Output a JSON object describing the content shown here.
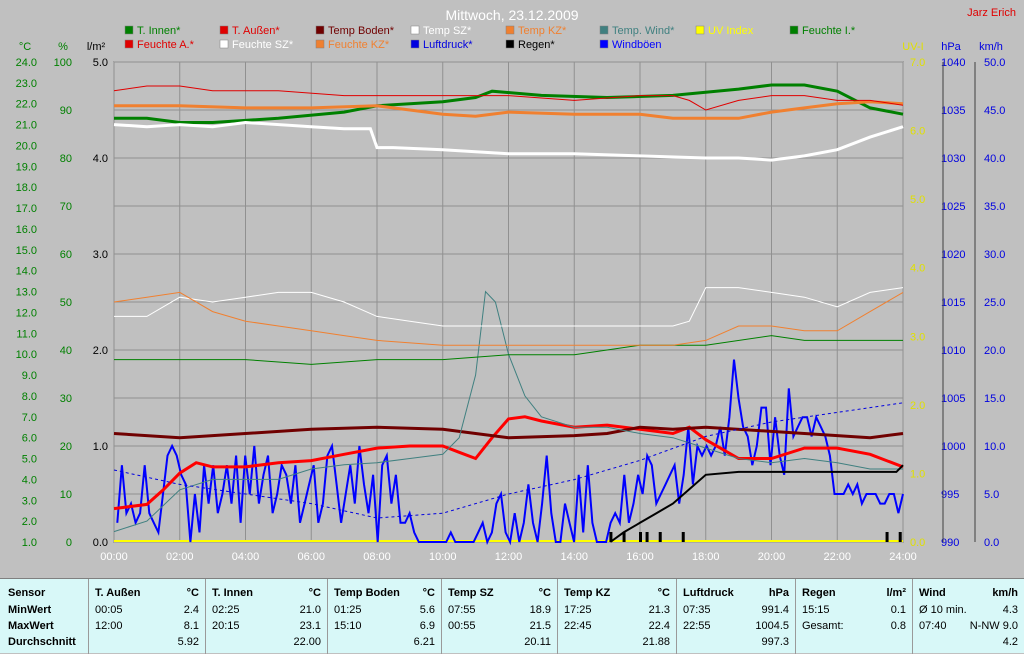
{
  "title": "Mittwoch, 23.12.2009",
  "author": "Jarz Erich",
  "colors": {
    "background": "#c0c0c0",
    "t_innen": "#008000",
    "t_aussen": "#e00000",
    "temp_boden": "#700000",
    "temp_sz": "#ffffff",
    "temp_kz": "#f08030",
    "temp_wind": "#408080",
    "uv": "#e0e000",
    "feuchte_i": "#008000",
    "feuchte_a": "#e00000",
    "feuchte_sz": "#ffffff",
    "feuchte_kz": "#f08030",
    "luftdruck": "#0000e0",
    "regen": "#000000",
    "windboeen": "#0000ff"
  },
  "legend": [
    {
      "label": "T. Innen*",
      "color": "#008000"
    },
    {
      "label": "T. Außen*",
      "color": "#e00000"
    },
    {
      "label": "Temp Boden*",
      "color": "#700000"
    },
    {
      "label": "Temp SZ*",
      "color": "#ffffff"
    },
    {
      "label": "Temp KZ*",
      "color": "#f08030"
    },
    {
      "label": "Temp. Wind*",
      "color": "#408080"
    },
    {
      "label": "UV Index",
      "color": "#ffff00"
    },
    {
      "label": "Feuchte I.*",
      "color": "#008000"
    },
    {
      "label": "Feuchte A.*",
      "color": "#e00000"
    },
    {
      "label": "Feuchte SZ*",
      "color": "#ffffff"
    },
    {
      "label": "Feuchte KZ*",
      "color": "#f08030"
    },
    {
      "label": "Luftdruck*",
      "color": "#0000e0"
    },
    {
      "label": "Regen*",
      "color": "#000000"
    },
    {
      "label": "Windböen",
      "color": "#0000ff"
    }
  ],
  "chart_data": {
    "type": "line",
    "x_ticks": [
      "00:00",
      "02:00",
      "04:00",
      "06:00",
      "08:00",
      "10:00",
      "12:00",
      "14:00",
      "16:00",
      "18:00",
      "20:00",
      "22:00",
      "24:00"
    ],
    "x_range_hours": [
      0,
      24
    ],
    "axes": {
      "temp_c": {
        "unit": "°C",
        "range": [
          1.0,
          24.0
        ],
        "ticks": [
          "1.0",
          "2.0",
          "3.0",
          "4.0",
          "5.0",
          "6.0",
          "7.0",
          "8.0",
          "9.0",
          "10.0",
          "11.0",
          "12.0",
          "13.0",
          "14.0",
          "15.0",
          "16.0",
          "17.0",
          "18.0",
          "19.0",
          "20.0",
          "21.0",
          "22.0",
          "23.0",
          "24.0"
        ]
      },
      "humidity_pct": {
        "unit": "%",
        "range": [
          0,
          100
        ],
        "ticks": [
          "0",
          "10",
          "20",
          "30",
          "40",
          "50",
          "60",
          "70",
          "80",
          "90",
          "100"
        ]
      },
      "rain_lm2": {
        "unit": "l/m²",
        "range": [
          0,
          5
        ],
        "ticks": [
          "0.0",
          "1.0",
          "2.0",
          "3.0",
          "4.0",
          "5.0"
        ]
      },
      "uv": {
        "unit": "UV-I",
        "range": [
          0,
          7
        ],
        "ticks": [
          "0.0",
          "1.0",
          "2.0",
          "3.0",
          "4.0",
          "5.0",
          "6.0",
          "7.0"
        ]
      },
      "pressure_hpa": {
        "unit": "hPa",
        "range": [
          990,
          1040
        ],
        "ticks": [
          "990",
          "995",
          "1000",
          "1005",
          "1010",
          "1015",
          "1020",
          "1025",
          "1030",
          "1035",
          "1040"
        ]
      },
      "wind_kmh": {
        "unit": "km/h",
        "range": [
          0,
          50
        ],
        "ticks": [
          "0.0",
          "5.0",
          "10.0",
          "15.0",
          "20.0",
          "25.0",
          "30.0",
          "35.0",
          "40.0",
          "45.0",
          "50.0"
        ]
      }
    },
    "series": [
      {
        "name": "T. Innen*",
        "axis": "temp_c",
        "color": "#008000",
        "width": 3,
        "x": [
          0,
          1,
          2,
          3,
          5,
          7,
          8,
          10,
          11,
          11.5,
          13,
          15,
          17,
          19,
          20,
          21,
          22,
          23,
          24
        ],
        "y": [
          21.3,
          21.3,
          21.1,
          21.1,
          21.3,
          21.6,
          21.9,
          22.1,
          22.3,
          22.6,
          22.4,
          22.3,
          22.4,
          22.7,
          22.9,
          22.9,
          22.6,
          21.8,
          21.5
        ]
      },
      {
        "name": "T. Außen*",
        "axis": "temp_c",
        "color": "#ff0000",
        "width": 3,
        "x": [
          0,
          1,
          1.5,
          2,
          2.5,
          3,
          4,
          5,
          6,
          7,
          8,
          9,
          10,
          10.5,
          11,
          11.5,
          12,
          12.5,
          13,
          14,
          15,
          16,
          17,
          17.5,
          18,
          19,
          20,
          21,
          22,
          23,
          24
        ],
        "y": [
          2.6,
          2.8,
          3.5,
          4.3,
          4.8,
          4.6,
          4.6,
          4.8,
          4.9,
          5.2,
          5.5,
          5.6,
          5.6,
          5.3,
          5.0,
          6.0,
          6.9,
          7.0,
          6.8,
          6.5,
          6.6,
          6.4,
          6.2,
          6.5,
          5.9,
          5.0,
          5.0,
          5.5,
          5.5,
          5.2,
          4.6
        ]
      },
      {
        "name": "Temp Boden*",
        "axis": "temp_c",
        "color": "#700000",
        "width": 3,
        "x": [
          0,
          2,
          4,
          6,
          8,
          10,
          11,
          12,
          14,
          15,
          16,
          17,
          18,
          20,
          22,
          23,
          24
        ],
        "y": [
          6.2,
          6.0,
          6.2,
          6.4,
          6.5,
          6.4,
          6.2,
          6.0,
          6.1,
          6.2,
          6.5,
          6.4,
          6.5,
          6.3,
          6.1,
          6.0,
          6.2
        ]
      },
      {
        "name": "Temp SZ*",
        "axis": "temp_c",
        "color": "#ffffff",
        "width": 3,
        "x": [
          0,
          1,
          2,
          3,
          4,
          6,
          7,
          7.8,
          8,
          8.5,
          10,
          12,
          14,
          16,
          18,
          19,
          20,
          21,
          22,
          23,
          24
        ],
        "y": [
          21.0,
          20.9,
          21.0,
          20.9,
          21.1,
          20.9,
          20.8,
          20.8,
          19.9,
          19.9,
          19.8,
          19.6,
          19.6,
          19.5,
          19.4,
          19.4,
          19.3,
          19.5,
          19.8,
          20.4,
          20.9
        ]
      },
      {
        "name": "Temp KZ*",
        "axis": "temp_c",
        "color": "#f08030",
        "width": 3,
        "x": [
          0,
          2,
          4,
          6,
          8,
          9,
          10,
          11,
          12,
          14,
          16,
          17,
          18,
          19,
          20,
          21,
          22,
          23,
          24
        ],
        "y": [
          21.9,
          21.9,
          21.8,
          21.8,
          21.9,
          21.7,
          21.5,
          21.4,
          21.6,
          21.5,
          21.5,
          21.3,
          21.3,
          21.3,
          21.6,
          21.8,
          22.0,
          22.1,
          22.0
        ]
      },
      {
        "name": "Temp. Wind*",
        "axis": "temp_c",
        "color": "#408080",
        "width": 1,
        "x": [
          0,
          1,
          2,
          3,
          4,
          5,
          6,
          7,
          8,
          9,
          10,
          10.5,
          11,
          11.3,
          11.6,
          12,
          12.5,
          13,
          14,
          15,
          16,
          17,
          18,
          19,
          20,
          21,
          22,
          23,
          24
        ],
        "y": [
          1.5,
          2.0,
          3.5,
          4.0,
          4.0,
          4.0,
          4.5,
          4.7,
          4.8,
          5.0,
          5.2,
          6.0,
          9.0,
          13.0,
          12.5,
          10.0,
          8.0,
          7.0,
          6.5,
          6.5,
          6.2,
          6.0,
          5.5,
          5.0,
          4.8,
          5.0,
          4.8,
          4.5,
          4.5
        ]
      },
      {
        "name": "Feuchte I.*",
        "axis": "humidity_pct",
        "color": "#008000",
        "width": 1,
        "x": [
          0,
          2,
          4,
          6,
          8,
          10,
          12,
          14,
          15,
          16,
          18,
          20,
          21,
          22,
          24
        ],
        "y": [
          38,
          38,
          38,
          37,
          38,
          38,
          39,
          39,
          40,
          41,
          41,
          43,
          42,
          42,
          42
        ]
      },
      {
        "name": "Feuchte A.*",
        "axis": "humidity_pct",
        "color": "#e00000",
        "width": 1,
        "x": [
          0,
          1,
          2,
          3,
          5,
          7,
          8,
          10,
          12,
          14,
          16,
          17,
          17.5,
          18,
          19,
          20,
          21,
          22,
          23,
          24
        ],
        "y": [
          94,
          95,
          95,
          94,
          94,
          93,
          93,
          93,
          93,
          92,
          93,
          93,
          92,
          90,
          92,
          93,
          93,
          92,
          92,
          91
        ]
      },
      {
        "name": "Feuchte SZ*",
        "axis": "humidity_pct",
        "color": "#ffffff",
        "width": 1,
        "x": [
          0,
          1,
          2,
          3,
          4,
          5,
          6,
          7,
          8,
          9,
          10,
          11,
          12,
          14,
          16,
          17,
          17.5,
          18,
          19,
          20,
          21,
          22,
          23,
          24
        ],
        "y": [
          47,
          47,
          51,
          50,
          51,
          52,
          52,
          50,
          47,
          46,
          45,
          45,
          45,
          45,
          45,
          45,
          46,
          53,
          53,
          52,
          51,
          49,
          52,
          53
        ]
      },
      {
        "name": "Feuchte KZ*",
        "axis": "humidity_pct",
        "color": "#f08030",
        "width": 1,
        "x": [
          0,
          1,
          2,
          3,
          4,
          5,
          6,
          7,
          8,
          10,
          12,
          14,
          16,
          17,
          18,
          19,
          20,
          21,
          22,
          23,
          24
        ],
        "y": [
          50,
          51,
          52,
          48,
          46,
          45,
          44,
          43,
          42,
          41,
          41,
          41,
          41,
          41,
          42,
          45,
          45,
          44,
          44,
          48,
          52
        ]
      },
      {
        "name": "Luftdruck*",
        "axis": "pressure_hpa",
        "color": "#0000e0",
        "width": 1,
        "dashed": true,
        "x": [
          0,
          2,
          4,
          6,
          8,
          10,
          12,
          14,
          16,
          18,
          20,
          22,
          24
        ],
        "y": [
          997.5,
          996,
          995,
          994,
          992.5,
          993,
          995,
          996.5,
          998.5,
          1001,
          1002.5,
          1003.5,
          1004.5
        ]
      }
    ],
    "regen": {
      "name": "Regen*",
      "axis": "rain_lm2",
      "color": "#000000",
      "x": [
        15.1,
        15.5,
        16,
        16.5,
        17,
        17.5,
        18,
        19,
        20,
        21,
        22,
        23,
        23.8,
        24
      ],
      "y": [
        0,
        0.1,
        0.2,
        0.3,
        0.4,
        0.55,
        0.7,
        0.73,
        0.73,
        0.73,
        0.73,
        0.73,
        0.73,
        0.8
      ]
    },
    "regen_ticks_x": [
      15.1,
      15.5,
      16.0,
      16.2,
      16.6,
      17.3,
      23.5,
      23.9
    ],
    "windboeen": {
      "name": "Windböen",
      "axis": "wind_kmh",
      "color": "#0000ff",
      "values": [
        2,
        8,
        3,
        4,
        2,
        3,
        8,
        3,
        2,
        1,
        5,
        9,
        10,
        9,
        7,
        6,
        0,
        5,
        1,
        8,
        4,
        8,
        3,
        5,
        8,
        4,
        9,
        2,
        9,
        5,
        10,
        4,
        7,
        9,
        3,
        5,
        8,
        7,
        4,
        8,
        2,
        4,
        6,
        8,
        2,
        4,
        9,
        10,
        6,
        2,
        5,
        8,
        4,
        10,
        6,
        3,
        7,
        0,
        8,
        9,
        4,
        7,
        2,
        2,
        3,
        1,
        0,
        0,
        0,
        0,
        0,
        0,
        0,
        1,
        0,
        0,
        0,
        0,
        0,
        1,
        2,
        0,
        1,
        4,
        5,
        1,
        0,
        3,
        0,
        2,
        6,
        2,
        0,
        4,
        9,
        3,
        0,
        0,
        4,
        2,
        0,
        7,
        1,
        8,
        2,
        0,
        0,
        0,
        2,
        3,
        2,
        7,
        2,
        4,
        7,
        5,
        9,
        8,
        4,
        5,
        6,
        7,
        8,
        4,
        7,
        12,
        6,
        10,
        9,
        10,
        9,
        10,
        12,
        9,
        13,
        19,
        15,
        12,
        11,
        8,
        10,
        14,
        14,
        8,
        13,
        9,
        7,
        16,
        11,
        12,
        13,
        13,
        11,
        13,
        12,
        11,
        9,
        5,
        5,
        5,
        6,
        5,
        6,
        4,
        5,
        5,
        5,
        4,
        4,
        5,
        5,
        3,
        5
      ]
    },
    "wind_gust_x_range": [
      0.1,
      24
    ]
  },
  "table": {
    "sensor_header": "Sensor",
    "row_labels": [
      "MinWert",
      "MaxWert",
      "Durchschnitt"
    ],
    "columns": [
      {
        "title": "T. Außen",
        "unit": "°C",
        "min_time": "00:05",
        "min": "2.4",
        "max_time": "12:00",
        "max": "8.1",
        "avg": "5.92"
      },
      {
        "title": "T. Innen",
        "unit": "°C",
        "min_time": "02:25",
        "min": "21.0",
        "max_time": "20:15",
        "max": "23.1",
        "avg": "22.00"
      },
      {
        "title": "Temp Boden",
        "unit": "°C",
        "min_time": "01:25",
        "min": "5.6",
        "max_time": "15:10",
        "max": "6.9",
        "avg": "6.21"
      },
      {
        "title": "Temp SZ",
        "unit": "°C",
        "min_time": "07:55",
        "min": "18.9",
        "max_time": "00:55",
        "max": "21.5",
        "avg": "20.11"
      },
      {
        "title": "Temp KZ",
        "unit": "°C",
        "min_time": "17:25",
        "min": "21.3",
        "max_time": "22:45",
        "max": "22.4",
        "avg": "21.88"
      },
      {
        "title": "Luftdruck",
        "unit": "hPa",
        "min_time": "07:35",
        "min": "991.4",
        "max_time": "22:55",
        "max": "1004.5",
        "avg": "997.3"
      },
      {
        "title": "Regen",
        "unit": "l/m²",
        "min_time": "15:15",
        "min": "0.1",
        "max_time": "Gesamt:",
        "max": "0.8",
        "avg": ""
      },
      {
        "title": "Wind",
        "unit": "km/h",
        "min_time": "Ø 10 min.",
        "min": "4.3",
        "max_time": "07:40",
        "max": "N-NW 9.0",
        "avg": "4.2"
      }
    ]
  }
}
